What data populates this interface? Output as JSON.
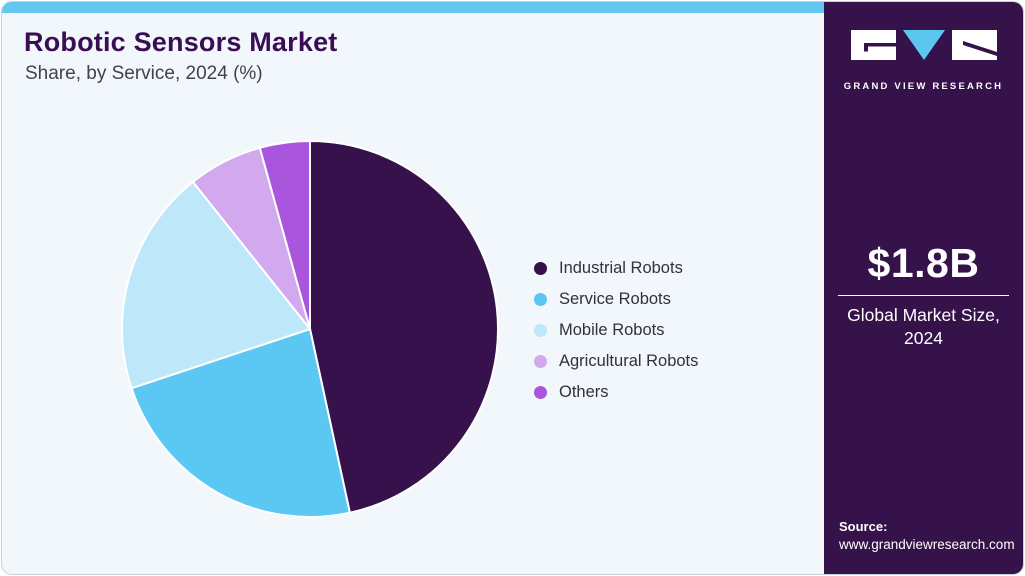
{
  "header": {
    "title": "Robotic Sensors Market",
    "subtitle": "Share, by Service, 2024 (%)"
  },
  "chart_data": {
    "type": "pie",
    "title": "Robotic Sensors Market Share, by Service, 2024 (%)",
    "categories": [
      "Industrial Robots",
      "Service Robots",
      "Mobile Robots",
      "Agricultural Robots",
      "Others"
    ],
    "values": [
      46.6,
      23.3,
      19.4,
      6.4,
      4.3
    ],
    "units": "%",
    "colors": [
      "#36114B",
      "#5BC7F3",
      "#BEE7F9",
      "#D2A9EE",
      "#A956DC"
    ],
    "start_angle_deg": 0,
    "direction": "clockwise",
    "legend_position": "right",
    "slice_gap_color": "#FFFFFF"
  },
  "sidebar": {
    "logo_text": "GRAND VIEW RESEARCH",
    "market_size_value": "$1.8B",
    "market_size_label": "Global Market Size, 2024",
    "source_label": "Source:",
    "source_url": "www.grandviewresearch.com"
  },
  "colors": {
    "topbar": "#63C6F0",
    "main_bg": "#F2F7FB",
    "card_border": "#C7D2DA",
    "title": "#3A0E55",
    "subtitle": "#45414C",
    "legend_text": "#33313A",
    "sidebar_bg": "#36124B",
    "logo_triangle": "#5BC6F0"
  }
}
